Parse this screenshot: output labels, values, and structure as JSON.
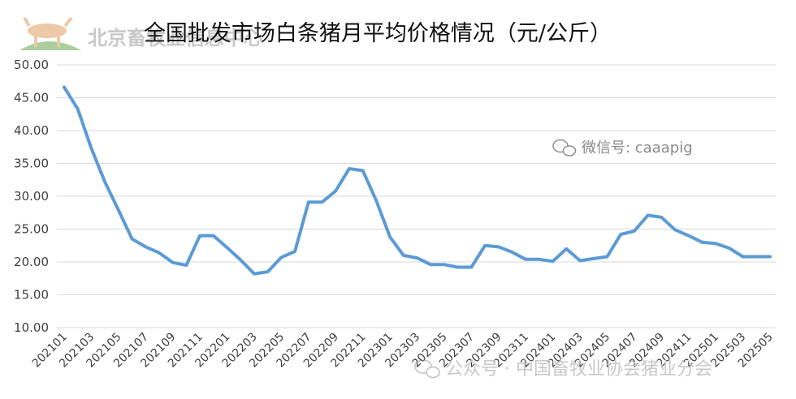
{
  "chart_data": {
    "type": "line",
    "title": "全国批发市场白条猪月平均价格情况（元/公斤）",
    "xlabel": "",
    "ylabel": "",
    "ylim": [
      10,
      50
    ],
    "yticks": [
      "50.00",
      "45.00",
      "40.00",
      "35.00",
      "30.00",
      "25.00",
      "20.00",
      "15.00",
      "10.00"
    ],
    "grid": "horizontal",
    "legend": "none",
    "line_color": "#5b9bd5",
    "xtick_labels": [
      "202101",
      "202103",
      "202105",
      "202107",
      "202109",
      "202111",
      "202201",
      "202203",
      "202205",
      "202207",
      "202209",
      "202211",
      "202301",
      "202303",
      "202305",
      "202307",
      "202309",
      "202311",
      "202401",
      "202403",
      "202405",
      "202407",
      "202409",
      "202411",
      "202501",
      "202503",
      "202505"
    ],
    "x": [
      "202101",
      "202102",
      "202103",
      "202104",
      "202105",
      "202106",
      "202107",
      "202108",
      "202109",
      "202110",
      "202111",
      "202112",
      "202201",
      "202202",
      "202203",
      "202204",
      "202205",
      "202206",
      "202207",
      "202208",
      "202209",
      "202210",
      "202211",
      "202212",
      "202301",
      "202302",
      "202303",
      "202304",
      "202305",
      "202306",
      "202307",
      "202308",
      "202309",
      "202310",
      "202311",
      "202312",
      "202401",
      "202402",
      "202403",
      "202404",
      "202405",
      "202406",
      "202407",
      "202408",
      "202409",
      "202410",
      "202411",
      "202412",
      "202501",
      "202502",
      "202503",
      "202504",
      "202505"
    ],
    "series": [
      {
        "values": [
          46.6,
          43.3,
          37.3,
          32.2,
          27.9,
          23.5,
          22.3,
          21.4,
          19.9,
          19.5,
          24.0,
          24.0,
          22.2,
          20.3,
          18.2,
          18.5,
          20.7,
          21.6,
          29.1,
          29.1,
          30.8,
          34.2,
          33.9,
          29.3,
          23.8,
          21.0,
          20.6,
          19.6,
          19.6,
          19.2,
          19.2,
          22.5,
          22.3,
          21.5,
          20.4,
          20.4,
          20.1,
          22.0,
          20.2,
          20.5,
          20.8,
          24.2,
          24.7,
          27.1,
          26.8,
          24.9,
          24.0,
          23.0,
          22.8,
          22.1,
          20.8,
          20.8,
          20.8
        ]
      }
    ]
  },
  "watermarks": {
    "logo_text": "北京畜牧业信息中心",
    "wechat": "微信号: caaapig",
    "gzh": "公众号 · 中国畜牧业协会猪业分会"
  }
}
